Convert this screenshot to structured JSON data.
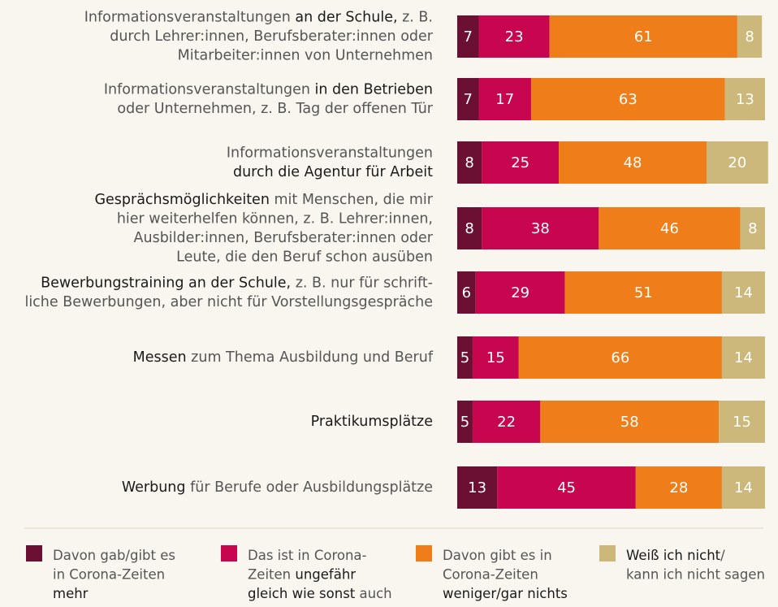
{
  "chart_data": {
    "type": "stacked-bar-horizontal",
    "xlim": [
      0,
      100
    ],
    "categories": [
      [
        [
          {
            "text": "Informationsveranstaltungen "
          },
          {
            "text": "an der Schule,",
            "bold": true
          },
          {
            "text": " z. B."
          }
        ],
        [
          {
            "text": "durch Lehrer:innen, Berufsberater:innen oder"
          }
        ],
        [
          {
            "text": "Mitarbeiter:innen von Unternehmen"
          }
        ]
      ],
      [
        [
          {
            "text": "Informationsveranstaltungen "
          },
          {
            "text": "in den Betrieben",
            "bold": true
          }
        ],
        [
          {
            "text": "oder Unternehmen, z. B. Tag der offenen Tür"
          }
        ]
      ],
      [
        [
          {
            "text": "Informationsveranstaltungen"
          }
        ],
        [
          {
            "text": "durch die Agentur für Arbeit",
            "bold": true
          }
        ]
      ],
      [
        [
          {
            "text": "Gesprächsmöglichkeiten",
            "bold": true
          },
          {
            "text": " mit Menschen, die mir"
          }
        ],
        [
          {
            "text": "hier weiterhelfen können, z. B. Lehrer:innen,"
          }
        ],
        [
          {
            "text": "Ausbilder:innen, Berufsberater:innen oder"
          }
        ],
        [
          {
            "text": "Leute, die den Beruf schon ausüben"
          }
        ]
      ],
      [
        [
          {
            "text": "Bewerbungstraining an der Schule,",
            "bold": true
          },
          {
            "text": " z. B. nur für schrift-"
          }
        ],
        [
          {
            "text": "liche Bewerbungen, aber nicht für Vorstellungsgespräche"
          }
        ]
      ],
      [
        [
          {
            "text": "Messen",
            "bold": true
          },
          {
            "text": " zum Thema Ausbildung und Beruf"
          }
        ]
      ],
      [
        [
          {
            "text": "Praktikumsplätze",
            "bold": true
          }
        ]
      ],
      [
        [
          {
            "text": "Werbung",
            "bold": true
          },
          {
            "text": " für Berufe oder Ausbildungsplätze"
          }
        ]
      ]
    ],
    "series": [
      {
        "name": [
          [
            {
              "text": "Davon gab/gibt es"
            }
          ],
          [
            {
              "text": "in Corona-Zeiten"
            }
          ],
          [
            {
              "text": "mehr",
              "bold": true
            }
          ]
        ],
        "color": "#6b0f33",
        "values": [
          7,
          7,
          8,
          8,
          6,
          5,
          5,
          13
        ]
      },
      {
        "name": [
          [
            {
              "text": "Das ist in Corona-"
            }
          ],
          [
            {
              "text": "Zeiten "
            },
            {
              "text": "ungefähr",
              "bold": true
            }
          ],
          [
            {
              "text": "gleich wie sonst",
              "bold": true
            },
            {
              "text": " auch"
            }
          ]
        ],
        "color": "#c8064f",
        "values": [
          23,
          17,
          25,
          38,
          29,
          15,
          22,
          45
        ]
      },
      {
        "name": [
          [
            {
              "text": "Davon gibt es in"
            }
          ],
          [
            {
              "text": "Corona-Zeiten"
            }
          ],
          [
            {
              "text": "weniger/gar nichts",
              "bold": true
            }
          ]
        ],
        "color": "#ef7d1a",
        "values": [
          61,
          63,
          48,
          46,
          51,
          66,
          58,
          28
        ]
      },
      {
        "name": [
          [
            {
              "text": "Weiß ich nicht",
              "bold": true
            },
            {
              "text": "/"
            }
          ],
          [
            {
              "text": "kann ich nicht sagen"
            }
          ]
        ],
        "color": "#cbb87a",
        "values": [
          8,
          13,
          20,
          8,
          14,
          14,
          15,
          14
        ]
      }
    ]
  }
}
